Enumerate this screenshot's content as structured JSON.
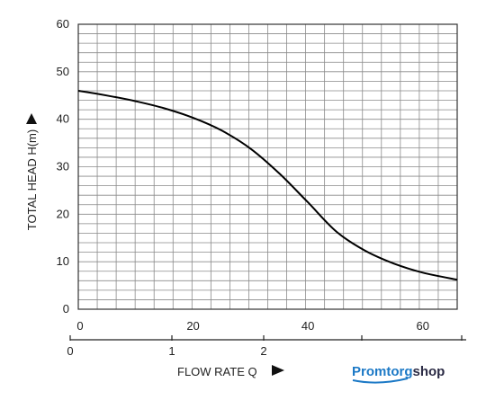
{
  "chart_data": {
    "type": "line",
    "title": "",
    "ylabel": "TOTAL HEAD H(m)",
    "xlabel": "FLOW RATE Q",
    "ylim": [
      0,
      60
    ],
    "xlim": [
      0,
      66
    ],
    "grid": true,
    "y_ticks": [
      "0",
      "10",
      "20",
      "30",
      "40",
      "50",
      "60"
    ],
    "x_ticks": [
      "0",
      "20",
      "40",
      "60"
    ],
    "secondary_x_ticks": [
      "0",
      "1",
      "2"
    ],
    "series": [
      {
        "x": [
          0,
          5,
          10,
          15,
          20,
          25,
          30,
          35,
          40,
          45,
          50,
          55,
          60,
          66
        ],
        "y": [
          46,
          45,
          43.8,
          42.3,
          40.3,
          37.6,
          33.8,
          28.6,
          22.5,
          16.3,
          12.3,
          9.6,
          7.7,
          6.2
        ]
      }
    ]
  },
  "logo": {
    "part1": "Promtorg",
    "part2": "shop",
    "colors": {
      "primary": "#1c79c6",
      "secondary": "#2a2a44"
    }
  },
  "colors": {
    "grid": "#8a8a8a",
    "curve": "#000000",
    "text": "#222222"
  }
}
